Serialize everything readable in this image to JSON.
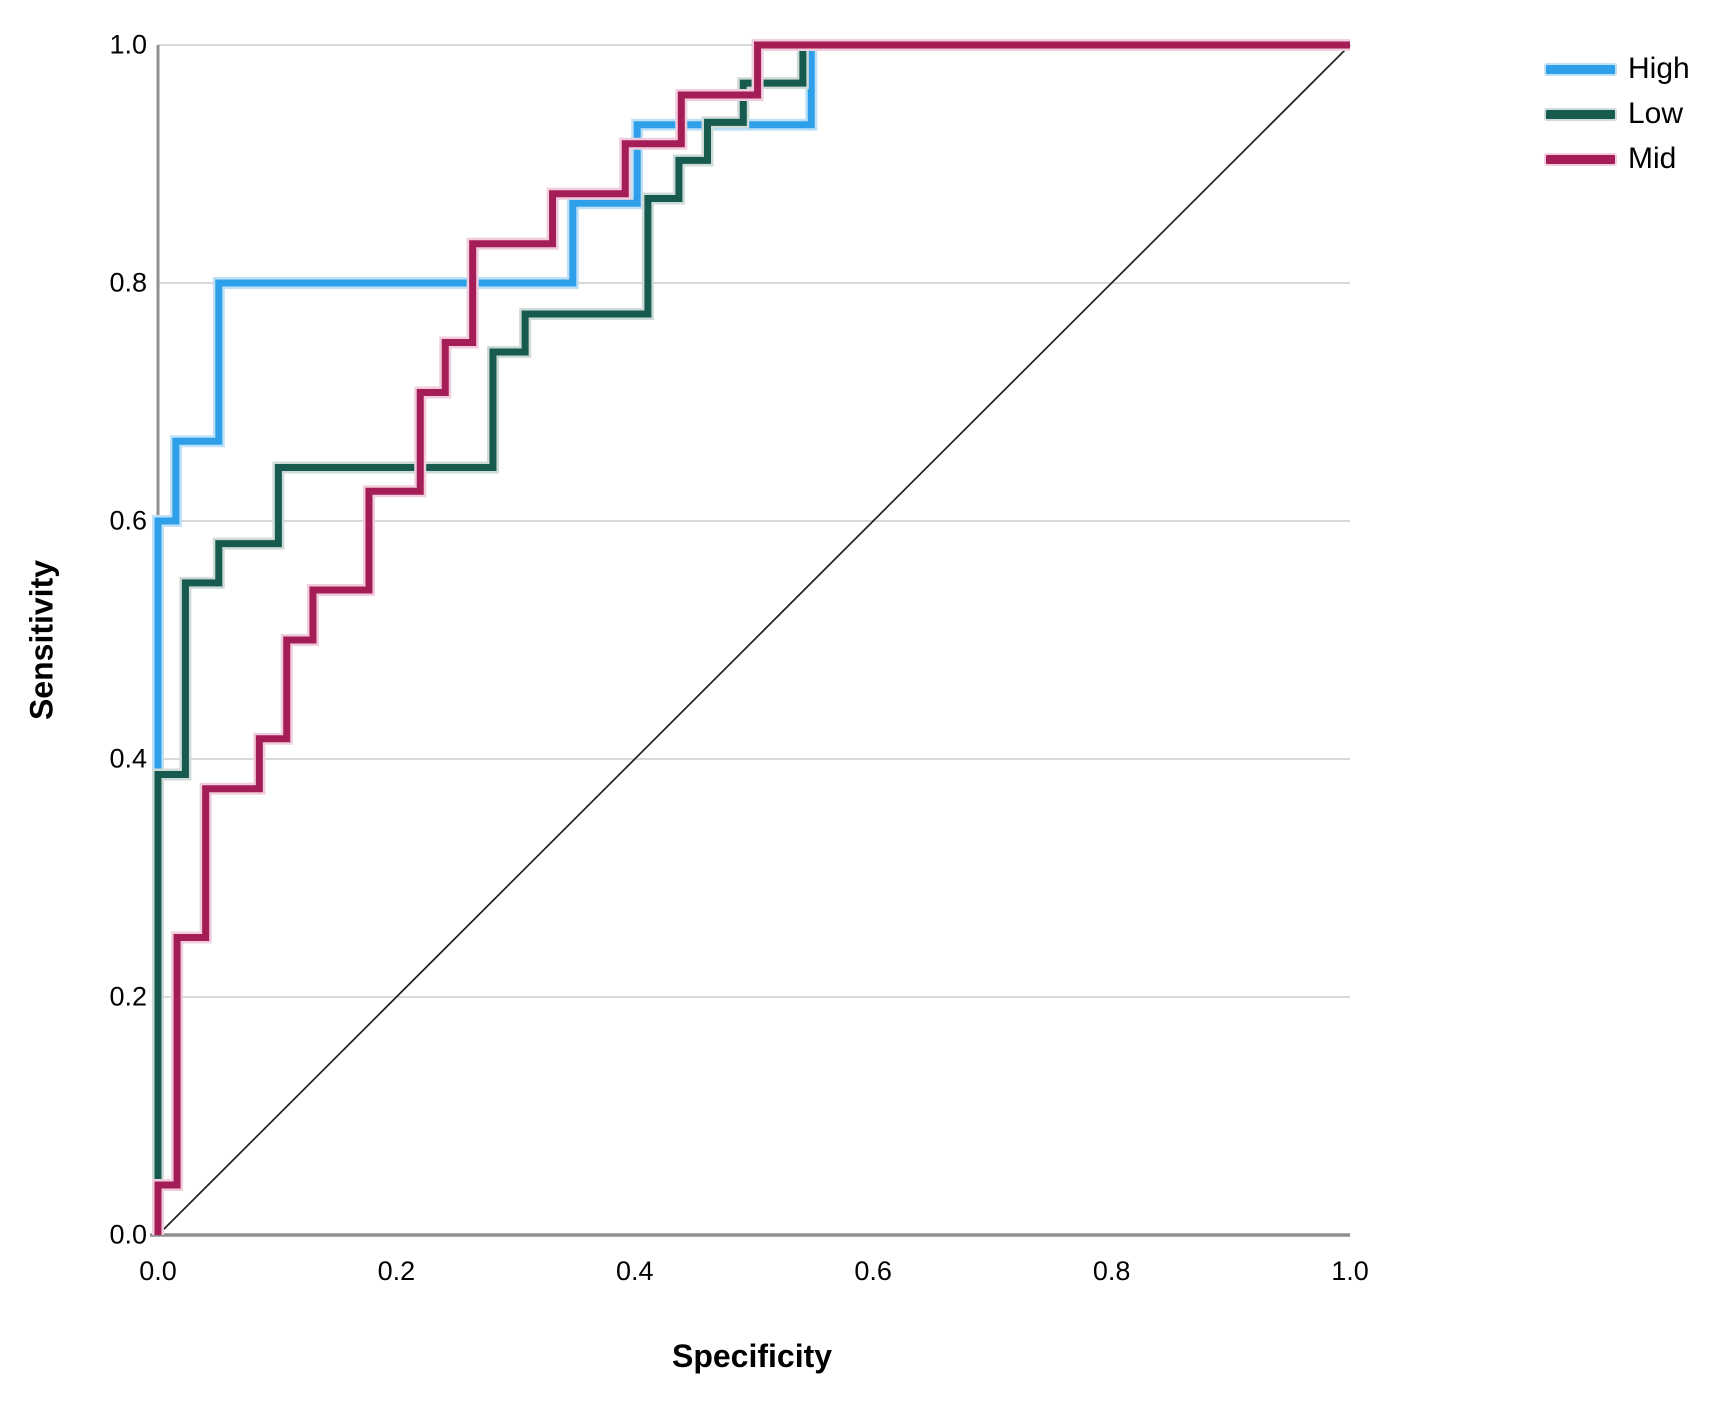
{
  "figure": {
    "background": "#ffffff"
  },
  "chart_data": {
    "type": "line",
    "style": "roc-step-curves",
    "title": "",
    "xlabel": "Specificity",
    "ylabel": "Sensitivity",
    "xlim": [
      0,
      1
    ],
    "ylim": [
      0,
      1
    ],
    "x_ticks": [
      {
        "value": 0.0,
        "label": "0.0"
      },
      {
        "value": 0.2,
        "label": "0.2"
      },
      {
        "value": 0.4,
        "label": "0.4"
      },
      {
        "value": 0.6,
        "label": "0.6"
      },
      {
        "value": 0.8,
        "label": "0.8"
      },
      {
        "value": 1.0,
        "label": "1.0"
      }
    ],
    "y_ticks": [
      {
        "value": 0.0,
        "label": "0.0"
      },
      {
        "value": 0.2,
        "label": "0.2"
      },
      {
        "value": 0.4,
        "label": "0.4"
      },
      {
        "value": 0.6,
        "label": "0.6"
      },
      {
        "value": 0.8,
        "label": "0.8"
      },
      {
        "value": 1.0,
        "label": "1.0"
      }
    ],
    "grid": "horizontal-only",
    "grid_color": "#d9d9d9",
    "axis_color": "#8f8f8f",
    "text_color": "#000000",
    "legend_position": "top-right-outside",
    "reference_line": {
      "name": "chance-diagonal",
      "color": "#1f1f1f",
      "width": 1.7,
      "points": [
        [
          0,
          0
        ],
        [
          1,
          1
        ]
      ]
    },
    "series": [
      {
        "name": "High",
        "color": "#2e9fe9",
        "halo_color": "#bfe1f8",
        "points": [
          [
            0,
            0
          ],
          [
            0,
            0.6
          ],
          [
            0.015,
            0.6
          ],
          [
            0.015,
            0.667
          ],
          [
            0.051,
            0.667
          ],
          [
            0.051,
            0.8
          ],
          [
            0.348,
            0.8
          ],
          [
            0.348,
            0.867
          ],
          [
            0.402,
            0.867
          ],
          [
            0.402,
            0.933
          ],
          [
            0.548,
            0.933
          ],
          [
            0.548,
            1.0
          ],
          [
            1.0,
            1.0
          ]
        ]
      },
      {
        "name": "Low",
        "color": "#175a50",
        "halo_color": "#cedbd6",
        "points": [
          [
            0,
            0
          ],
          [
            0,
            0.387
          ],
          [
            0.023,
            0.387
          ],
          [
            0.023,
            0.548
          ],
          [
            0.051,
            0.548
          ],
          [
            0.051,
            0.581
          ],
          [
            0.101,
            0.581
          ],
          [
            0.101,
            0.645
          ],
          [
            0.281,
            0.645
          ],
          [
            0.281,
            0.742
          ],
          [
            0.308,
            0.742
          ],
          [
            0.308,
            0.774
          ],
          [
            0.411,
            0.774
          ],
          [
            0.411,
            0.871
          ],
          [
            0.437,
            0.871
          ],
          [
            0.437,
            0.903
          ],
          [
            0.461,
            0.903
          ],
          [
            0.461,
            0.935
          ],
          [
            0.491,
            0.935
          ],
          [
            0.491,
            0.968
          ],
          [
            0.541,
            0.968
          ],
          [
            0.541,
            1.0
          ],
          [
            1.0,
            1.0
          ]
        ]
      },
      {
        "name": "Mid",
        "color": "#a51d56",
        "halo_color": "#f0ccdd",
        "points": [
          [
            0,
            0
          ],
          [
            0,
            0.042
          ],
          [
            0.016,
            0.042
          ],
          [
            0.016,
            0.25
          ],
          [
            0.04,
            0.25
          ],
          [
            0.04,
            0.375
          ],
          [
            0.085,
            0.375
          ],
          [
            0.085,
            0.417
          ],
          [
            0.108,
            0.417
          ],
          [
            0.108,
            0.5
          ],
          [
            0.13,
            0.5
          ],
          [
            0.13,
            0.542
          ],
          [
            0.177,
            0.542
          ],
          [
            0.177,
            0.625
          ],
          [
            0.22,
            0.625
          ],
          [
            0.22,
            0.708
          ],
          [
            0.241,
            0.708
          ],
          [
            0.241,
            0.75
          ],
          [
            0.264,
            0.75
          ],
          [
            0.264,
            0.833
          ],
          [
            0.331,
            0.833
          ],
          [
            0.331,
            0.875
          ],
          [
            0.392,
            0.875
          ],
          [
            0.392,
            0.917
          ],
          [
            0.439,
            0.917
          ],
          [
            0.439,
            0.958
          ],
          [
            0.503,
            0.958
          ],
          [
            0.503,
            1.0
          ],
          [
            1.0,
            1.0
          ]
        ]
      }
    ]
  }
}
